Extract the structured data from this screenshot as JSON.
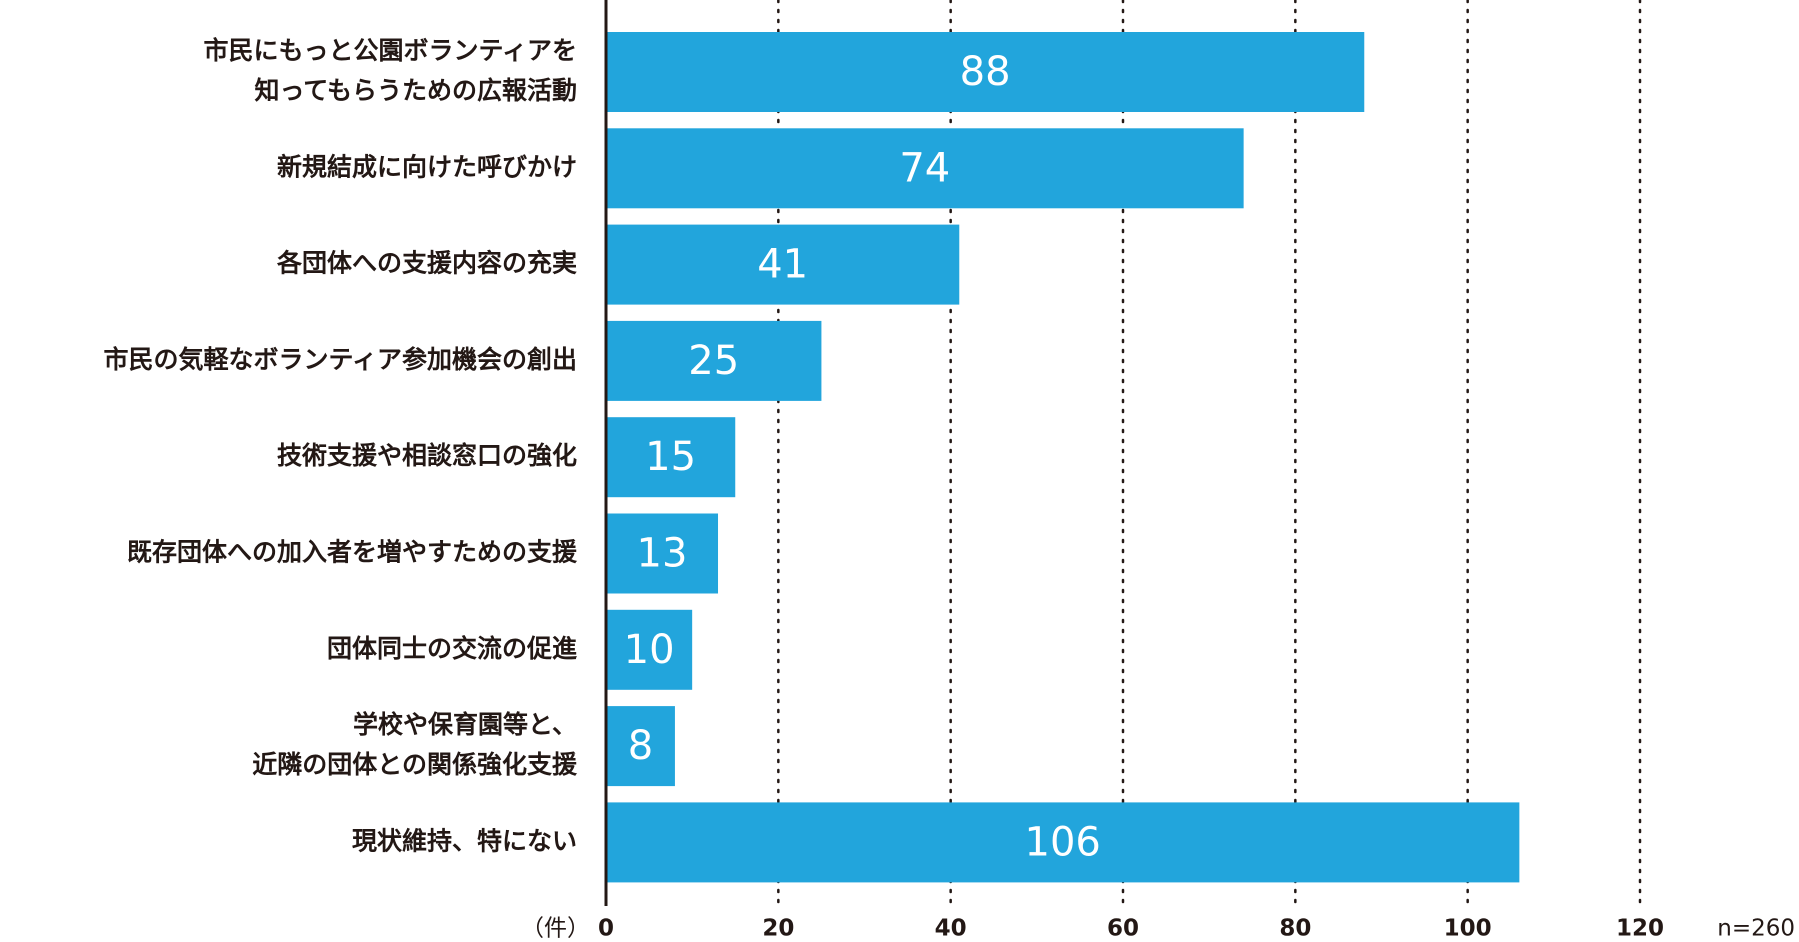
{
  "chart_data": {
    "type": "bar",
    "orientation": "horizontal",
    "categories": [
      "市民にもっと公園ボランティアを\n知ってもらうための広報活動",
      "新規結成に向けた呼びかけ",
      "各団体への支援内容の充実",
      "市民の気軽なボランティア参加機会の創出",
      "技術支援や相談窓口の強化",
      "既存団体への加入者を増やすための支援",
      "団体同士の交流の促進",
      "学校や保育園等と、\n近隣の団体との関係強化支援",
      "現状維持、特にない"
    ],
    "values": [
      88,
      74,
      41,
      25,
      15,
      13,
      10,
      8,
      106
    ],
    "color": "#22a5dc",
    "xlim": [
      0,
      120
    ],
    "xticks": [
      0,
      20,
      40,
      60,
      80,
      100,
      120
    ],
    "grid": true,
    "unit_label": "（件）",
    "note": "n=260"
  }
}
